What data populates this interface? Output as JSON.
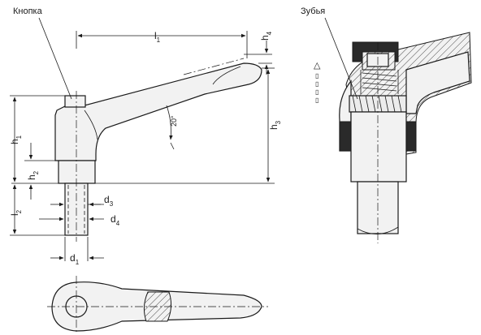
{
  "labels": {
    "knob": "Кнопка",
    "teeth": "Зубья",
    "angle": "20°",
    "legend_triangle": "△",
    "legend_boxes": [
      "▯",
      "▯",
      "▯",
      "▯"
    ]
  },
  "dimensions": {
    "l1": {
      "base": "l",
      "sub": "1"
    },
    "h4": {
      "base": "h",
      "sub": "4"
    },
    "h1": {
      "base": "h",
      "sub": "1"
    },
    "h2": {
      "base": "h",
      "sub": "2"
    },
    "h3": {
      "base": "h",
      "sub": "3"
    },
    "l2": {
      "base": "l",
      "sub": "2"
    },
    "d3": {
      "base": "d",
      "sub": "3"
    },
    "d4": {
      "base": "d",
      "sub": "4"
    },
    "d1": {
      "base": "d",
      "sub": "1"
    }
  }
}
